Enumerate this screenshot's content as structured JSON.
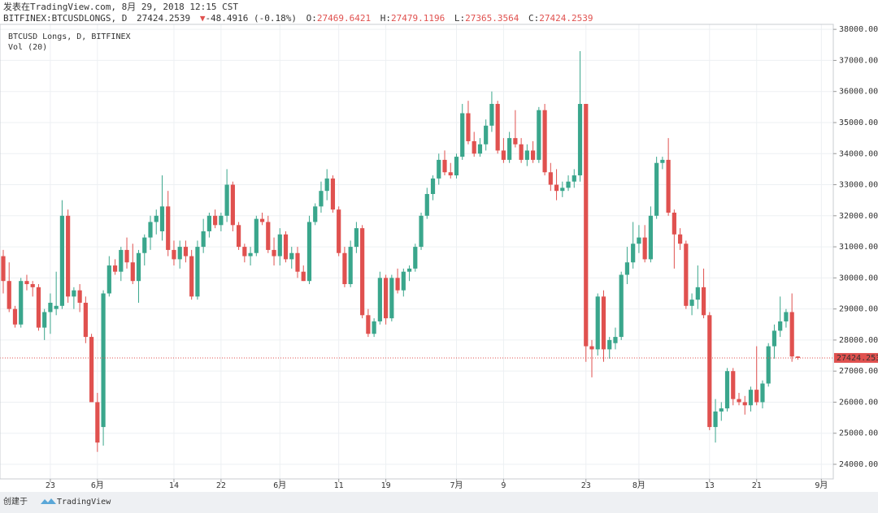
{
  "header": {
    "published": "发表在TradingView.com, 8月 29, 2018 12:15 CST",
    "symbol": "BITFINEX:BTCUSDLONGS, D",
    "arrow": "▼",
    "change": "-48.4916 (-0.18%)",
    "ohlc_labels": [
      "O:",
      "H:",
      "L:",
      "C:"
    ]
  },
  "footer": {
    "created": "创建于",
    "brand": "TradingView"
  },
  "chart_data": {
    "type": "candlestick",
    "title": "BTCUSD Longs, D, BITFINEX",
    "subtitle": "Vol (20)",
    "up_color": "#3aa68c",
    "down_color": "#e0514f",
    "grid": true,
    "ylim": [
      23530,
      38370
    ],
    "yticks": [
      {
        "value": 24000,
        "label": "24000.0000"
      },
      {
        "value": 25000,
        "label": "25000.0000"
      },
      {
        "value": 26000,
        "label": "26000.0000"
      },
      {
        "value": 27000,
        "label": "27000.0000"
      },
      {
        "value": 28000,
        "label": "28000.0000"
      },
      {
        "value": 29000,
        "label": "29000.0000"
      },
      {
        "value": 30000,
        "label": "30000.0000"
      },
      {
        "value": 31000,
        "label": "31000.0000"
      },
      {
        "value": 32000,
        "label": "32000.0000"
      },
      {
        "value": 33000,
        "label": "33000.0000"
      },
      {
        "value": 34000,
        "label": "34000.0000"
      },
      {
        "value": 35000,
        "label": "35000.0000"
      },
      {
        "value": 36000,
        "label": "36000.0000"
      },
      {
        "value": 37000,
        "label": "37000.0000"
      },
      {
        "value": 38000,
        "label": "38000.0000"
      }
    ],
    "categories": [
      null,
      null,
      null,
      null,
      null,
      null,
      null,
      null,
      "23",
      null,
      null,
      null,
      null,
      null,
      null,
      null,
      "6月",
      null,
      null,
      null,
      null,
      null,
      null,
      null,
      null,
      null,
      null,
      null,
      null,
      "14",
      null,
      null,
      null,
      null,
      null,
      null,
      null,
      "22",
      null,
      null,
      null,
      null,
      null,
      null,
      null,
      null,
      null,
      "6月",
      null,
      null,
      null,
      null,
      null,
      null,
      null,
      null,
      null,
      "11",
      null,
      null,
      null,
      null,
      null,
      null,
      null,
      "19",
      null,
      null,
      null,
      null,
      null,
      null,
      null,
      null,
      null,
      null,
      null,
      "7月",
      null,
      null,
      null,
      null,
      null,
      null,
      null,
      "9",
      null,
      null,
      null,
      null,
      null,
      null,
      null,
      null,
      null,
      null,
      null,
      null,
      null,
      "23",
      null,
      null,
      null,
      null,
      null,
      null,
      null,
      null,
      "8月",
      null,
      null,
      null,
      null,
      null,
      null,
      null,
      null,
      null,
      null,
      null,
      "13",
      null,
      null,
      null,
      null,
      null,
      null,
      null,
      "21",
      null,
      null,
      null,
      null,
      null,
      null,
      null,
      null,
      null,
      null,
      "9月"
    ],
    "ohlc": [
      [
        30700,
        30900,
        29500,
        29900
      ],
      [
        29900,
        30500,
        28900,
        29000
      ],
      [
        29000,
        29100,
        28400,
        28500
      ],
      [
        28500,
        30000,
        28400,
        29900
      ],
      [
        29900,
        30100,
        29600,
        29800
      ],
      [
        29800,
        29900,
        29400,
        29700
      ],
      [
        29700,
        29800,
        28300,
        28400
      ],
      [
        28400,
        29000,
        28000,
        28900
      ],
      [
        28900,
        29500,
        28200,
        29200
      ],
      [
        29000,
        30200,
        28800,
        29100
      ],
      [
        29100,
        32500,
        29000,
        32000
      ],
      [
        32000,
        32200,
        29200,
        29400
      ],
      [
        29400,
        29700,
        29000,
        29600
      ],
      [
        29600,
        29800,
        28900,
        29200
      ],
      [
        29200,
        29400,
        27900,
        28100
      ],
      [
        28100,
        28200,
        26000,
        26000
      ],
      [
        26000,
        26300,
        24400,
        24700
      ],
      [
        25200,
        29600,
        24600,
        29500
      ],
      [
        29500,
        30700,
        29400,
        30400
      ],
      [
        30400,
        30600,
        30100,
        30200
      ],
      [
        30200,
        31000,
        29900,
        30900
      ],
      [
        30900,
        31300,
        30300,
        30500
      ],
      [
        30500,
        31100,
        29800,
        29900
      ],
      [
        29900,
        30900,
        29200,
        30800
      ],
      [
        30800,
        31400,
        30400,
        31300
      ],
      [
        31300,
        32000,
        30900,
        31800
      ],
      [
        31800,
        32200,
        31400,
        32000
      ],
      [
        31500,
        33300,
        31200,
        32300
      ],
      [
        32300,
        32800,
        30700,
        30900
      ],
      [
        30900,
        31200,
        30400,
        30600
      ],
      [
        30600,
        31200,
        30300,
        31000
      ],
      [
        31000,
        31200,
        30500,
        30700
      ],
      [
        30700,
        30900,
        29300,
        29400
      ],
      [
        29400,
        31200,
        29300,
        31000
      ],
      [
        31000,
        31900,
        30800,
        31500
      ],
      [
        31500,
        32100,
        31300,
        32000
      ],
      [
        32000,
        32200,
        31600,
        31700
      ],
      [
        31700,
        32100,
        31500,
        32000
      ],
      [
        32000,
        33500,
        31800,
        33000
      ],
      [
        33000,
        33100,
        31500,
        31700
      ],
      [
        31700,
        31800,
        30900,
        31000
      ],
      [
        31000,
        31100,
        30500,
        30700
      ],
      [
        30700,
        31000,
        30400,
        30800
      ],
      [
        30800,
        32000,
        30700,
        31900
      ],
      [
        31900,
        32100,
        31700,
        31800
      ],
      [
        31800,
        32000,
        30800,
        30900
      ],
      [
        30900,
        31300,
        30400,
        30700
      ],
      [
        30700,
        31600,
        30400,
        31400
      ],
      [
        31400,
        31500,
        30500,
        30600
      ],
      [
        30600,
        31000,
        30300,
        30800
      ],
      [
        30800,
        31000,
        30000,
        30200
      ],
      [
        30200,
        30400,
        29900,
        29900
      ],
      [
        29900,
        32000,
        29800,
        31800
      ],
      [
        31800,
        32400,
        31700,
        32300
      ],
      [
        32300,
        33100,
        32100,
        32800
      ],
      [
        32800,
        33500,
        32500,
        33200
      ],
      [
        33200,
        33300,
        32100,
        32200
      ],
      [
        32200,
        32300,
        30700,
        30800
      ],
      [
        30800,
        31000,
        29700,
        29800
      ],
      [
        29800,
        31200,
        29700,
        31000
      ],
      [
        31000,
        31800,
        30800,
        31600
      ],
      [
        31600,
        31700,
        28700,
        28800
      ],
      [
        28800,
        29000,
        28100,
        28200
      ],
      [
        28200,
        28700,
        28100,
        28600
      ],
      [
        28600,
        30200,
        28500,
        30000
      ],
      [
        30000,
        30100,
        28500,
        28700
      ],
      [
        28700,
        30100,
        28600,
        30000
      ],
      [
        30000,
        30300,
        29500,
        29600
      ],
      [
        29600,
        30300,
        29400,
        30200
      ],
      [
        30200,
        30400,
        29900,
        30300
      ],
      [
        30300,
        31100,
        30200,
        31000
      ],
      [
        31000,
        32100,
        30900,
        32000
      ],
      [
        32000,
        32900,
        31900,
        32700
      ],
      [
        32700,
        33300,
        32500,
        33200
      ],
      [
        33200,
        34000,
        33000,
        33800
      ],
      [
        33800,
        34100,
        33300,
        33400
      ],
      [
        33400,
        33700,
        33200,
        33300
      ],
      [
        33300,
        34000,
        33200,
        33900
      ],
      [
        33900,
        35600,
        33800,
        35300
      ],
      [
        35300,
        35700,
        34300,
        34400
      ],
      [
        34400,
        34700,
        33900,
        34000
      ],
      [
        34000,
        34500,
        33900,
        34300
      ],
      [
        34300,
        35100,
        34100,
        34900
      ],
      [
        34900,
        36000,
        34700,
        35600
      ],
      [
        35600,
        35700,
        34000,
        34100
      ],
      [
        34100,
        34500,
        33700,
        33800
      ],
      [
        33800,
        34700,
        33700,
        34500
      ],
      [
        34500,
        35400,
        34200,
        34300
      ],
      [
        34300,
        34500,
        33700,
        33800
      ],
      [
        33800,
        34300,
        33600,
        34100
      ],
      [
        34100,
        34400,
        33700,
        33800
      ],
      [
        33800,
        35500,
        33700,
        35400
      ],
      [
        35400,
        35600,
        33300,
        33400
      ],
      [
        33400,
        33700,
        32800,
        33000
      ],
      [
        33000,
        33500,
        32500,
        32800
      ],
      [
        32800,
        33100,
        32600,
        32900
      ],
      [
        32900,
        33300,
        32800,
        33100
      ],
      [
        33100,
        33500,
        32900,
        33300
      ],
      [
        33300,
        37300,
        33100,
        35600
      ],
      [
        35600,
        35600,
        27300,
        27800
      ],
      [
        27800,
        28000,
        26800,
        27700
      ],
      [
        27700,
        29500,
        27500,
        29400
      ],
      [
        29400,
        29600,
        27300,
        27700
      ],
      [
        27700,
        28100,
        27400,
        28000
      ],
      [
        27900,
        28400,
        27700,
        28100
      ],
      [
        28100,
        30200,
        28000,
        30100
      ],
      [
        30100,
        31000,
        29800,
        30500
      ],
      [
        30500,
        31800,
        30300,
        31100
      ],
      [
        31100,
        31700,
        30800,
        31300
      ],
      [
        31300,
        31700,
        30500,
        30600
      ],
      [
        30600,
        32300,
        30500,
        32000
      ],
      [
        32000,
        33900,
        31900,
        33700
      ],
      [
        33700,
        33900,
        33500,
        33800
      ],
      [
        33800,
        34500,
        32000,
        32100
      ],
      [
        32100,
        32200,
        30300,
        31400
      ],
      [
        31400,
        31600,
        30900,
        31100
      ],
      [
        31100,
        31200,
        29000,
        29100
      ],
      [
        29100,
        29500,
        28800,
        29300
      ],
      [
        29300,
        30400,
        29000,
        29700
      ],
      [
        29700,
        30300,
        28700,
        28800
      ],
      [
        28800,
        28900,
        25100,
        25200
      ],
      [
        25200,
        26100,
        24700,
        25700
      ],
      [
        25700,
        26000,
        25400,
        25800
      ],
      [
        25800,
        27100,
        25700,
        27000
      ],
      [
        27000,
        27100,
        25900,
        26100
      ],
      [
        26100,
        26300,
        25900,
        26000
      ],
      [
        26000,
        26200,
        25600,
        25900
      ],
      [
        25900,
        26500,
        25700,
        26400
      ],
      [
        26400,
        27800,
        25900,
        26000
      ],
      [
        26000,
        26700,
        25800,
        26600
      ],
      [
        26600,
        27900,
        26500,
        27800
      ],
      [
        27800,
        28500,
        27400,
        28300
      ],
      [
        28300,
        29400,
        28100,
        28600
      ],
      [
        28600,
        29000,
        28400,
        28900
      ],
      [
        28900,
        29500,
        27300,
        27470
      ],
      [
        27469.6421,
        27479.1196,
        27365.3564,
        27424.2539
      ],
      null,
      null,
      null,
      null
    ]
  }
}
